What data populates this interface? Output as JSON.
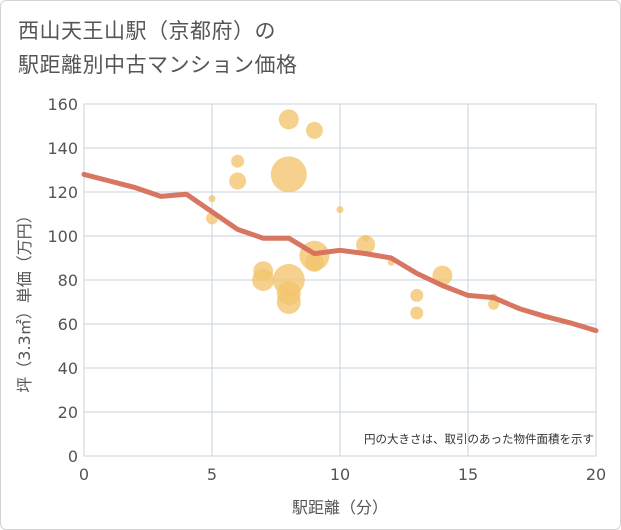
{
  "chart_data": {
    "type": "scatter",
    "title_lines": [
      "西山天王山駅（京都府）の",
      "駅距離別中古マンション価格"
    ],
    "xlabel": "駅距離（分）",
    "ylabel": "坪（3.3㎡）単価（万円）",
    "xlim": [
      0,
      20
    ],
    "ylim": [
      0,
      160
    ],
    "x_ticks": [
      0,
      5,
      10,
      15,
      20
    ],
    "y_ticks": [
      0,
      20,
      40,
      60,
      80,
      100,
      120,
      140,
      160
    ],
    "grid": true,
    "annotation": "円の大きさは、取引のあった物件面積を示す",
    "colors": {
      "bubble": "#f3c46e",
      "trend": "#d66f58",
      "grid": "#c9d3de"
    },
    "bubbles": [
      {
        "x": 5,
        "y": 117,
        "r": 3.5
      },
      {
        "x": 5,
        "y": 108,
        "r": 6
      },
      {
        "x": 6,
        "y": 134,
        "r": 6.5
      },
      {
        "x": 6,
        "y": 125,
        "r": 8.5
      },
      {
        "x": 7,
        "y": 84,
        "r": 10
      },
      {
        "x": 7,
        "y": 80,
        "r": 11
      },
      {
        "x": 8,
        "y": 153,
        "r": 10
      },
      {
        "x": 8,
        "y": 128,
        "r": 18
      },
      {
        "x": 8,
        "y": 80,
        "r": 16
      },
      {
        "x": 8,
        "y": 74,
        "r": 12
      },
      {
        "x": 8,
        "y": 70,
        "r": 12
      },
      {
        "x": 9,
        "y": 148,
        "r": 8.5
      },
      {
        "x": 9,
        "y": 91,
        "r": 15
      },
      {
        "x": 9,
        "y": 88,
        "r": 9.5
      },
      {
        "x": 10,
        "y": 112,
        "r": 3.5
      },
      {
        "x": 11,
        "y": 99,
        "r": 3.5
      },
      {
        "x": 11,
        "y": 96,
        "r": 9.5
      },
      {
        "x": 12,
        "y": 88,
        "r": 3.5
      },
      {
        "x": 13,
        "y": 73,
        "r": 6.5
      },
      {
        "x": 13,
        "y": 65,
        "r": 6.5
      },
      {
        "x": 14,
        "y": 82,
        "r": 10
      },
      {
        "x": 16,
        "y": 72,
        "r": 4
      },
      {
        "x": 16,
        "y": 69,
        "r": 5.5
      }
    ],
    "trend": {
      "x": [
        0,
        1,
        2,
        3,
        4,
        5,
        6,
        7,
        8,
        9,
        10,
        11,
        12,
        13,
        14,
        15,
        16,
        17,
        18,
        19,
        20
      ],
      "y": [
        128,
        125,
        122,
        118,
        119,
        111,
        103,
        99,
        99,
        92,
        93.5,
        92,
        90,
        83,
        77.5,
        73,
        72,
        67,
        63.5,
        60.5,
        57
      ]
    }
  }
}
